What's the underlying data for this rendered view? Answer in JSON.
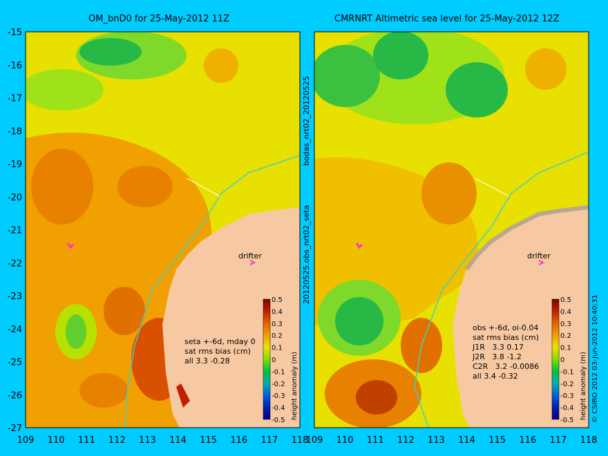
{
  "colors": {
    "background": "#00ccff",
    "land": "#f6c9a3",
    "track": "#3fd1c6",
    "drifter": "#ff33cc"
  },
  "left_panel": {
    "title": "OM_bnD0 for 25-May-2012 11Z",
    "annotation": [
      "seta +-6d, mday 0",
      "sat rms bias (cm)",
      "all 3.3 -0.28"
    ],
    "drifter_label": "drifter"
  },
  "right_panel": {
    "title": "CMRNRT Altimetric sea level  for 25-May-2012 12Z",
    "annotation": [
      "obs +-6d, oi-0.04",
      "sat rms bias (cm)",
      "J1R   3.3 0.17",
      "J2R   3.8 -1.2",
      "C2R   3.2 -0.0086",
      "all 3.4 -0.32"
    ],
    "drifter_label": "drifter"
  },
  "side_labels": {
    "top": "bodas_nrt02_20120525",
    "bottom": "20120525.obs_nrt02_seta",
    "credit": "© CSIRO 2012   03-Jun-2012 10:40:31"
  },
  "axes": {
    "lat_ticks": [
      "-15",
      "-16",
      "-17",
      "-18",
      "-19",
      "-20",
      "-21",
      "-22",
      "-23",
      "-24",
      "-25",
      "-26",
      "-27"
    ],
    "lon_ticks": [
      "109",
      "110",
      "111",
      "112",
      "113",
      "114",
      "115",
      "116",
      "117",
      "118"
    ]
  },
  "colorbar": {
    "label": "height anomaly (m)",
    "ticks": [
      "0.5",
      "0.4",
      "0.3",
      "0.2",
      "0.1",
      "0",
      "-0.1",
      "-0.2",
      "-0.3",
      "-0.4",
      "-0.5"
    ]
  }
}
